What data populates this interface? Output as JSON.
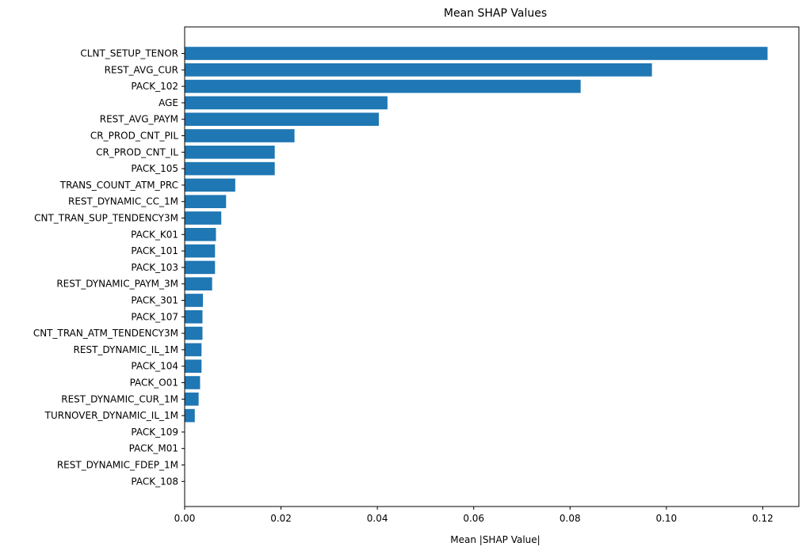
{
  "chart_data": {
    "type": "bar",
    "orientation": "horizontal",
    "title": "Mean SHAP Values",
    "xlabel": "Mean |SHAP Value|",
    "ylabel": "",
    "xlim": [
      0,
      0.1275
    ],
    "xticks": [
      0.0,
      0.02,
      0.04,
      0.06,
      0.08,
      0.1,
      0.12
    ],
    "xtick_labels": [
      "0.00",
      "0.02",
      "0.04",
      "0.06",
      "0.08",
      "0.10",
      "0.12"
    ],
    "grid": false,
    "bar_color": "#1f77b4",
    "categories": [
      "CLNT_SETUP_TENOR",
      "REST_AVG_CUR",
      "PACK_102",
      "AGE",
      "REST_AVG_PAYM",
      "CR_PROD_CNT_PIL",
      "CR_PROD_CNT_IL",
      "PACK_105",
      "TRANS_COUNT_ATM_PRC",
      "REST_DYNAMIC_CC_1M",
      "CNT_TRAN_SUP_TENDENCY3M",
      "PACK_K01",
      "PACK_101",
      "PACK_103",
      "REST_DYNAMIC_PAYM_3M",
      "PACK_301",
      "PACK_107",
      "CNT_TRAN_ATM_TENDENCY3M",
      "REST_DYNAMIC_IL_1M",
      "PACK_104",
      "PACK_O01",
      "REST_DYNAMIC_CUR_1M",
      "TURNOVER_DYNAMIC_IL_1M",
      "PACK_109",
      "PACK_M01",
      "REST_DYNAMIC_FDEP_1M",
      "PACK_108"
    ],
    "values": [
      0.121,
      0.097,
      0.0822,
      0.0421,
      0.0403,
      0.0228,
      0.0187,
      0.0187,
      0.0105,
      0.0086,
      0.0076,
      0.0065,
      0.0063,
      0.0063,
      0.0057,
      0.0038,
      0.0037,
      0.0037,
      0.0035,
      0.0035,
      0.0032,
      0.0029,
      0.0021,
      0.0,
      0.0,
      0.0,
      0.0
    ]
  }
}
